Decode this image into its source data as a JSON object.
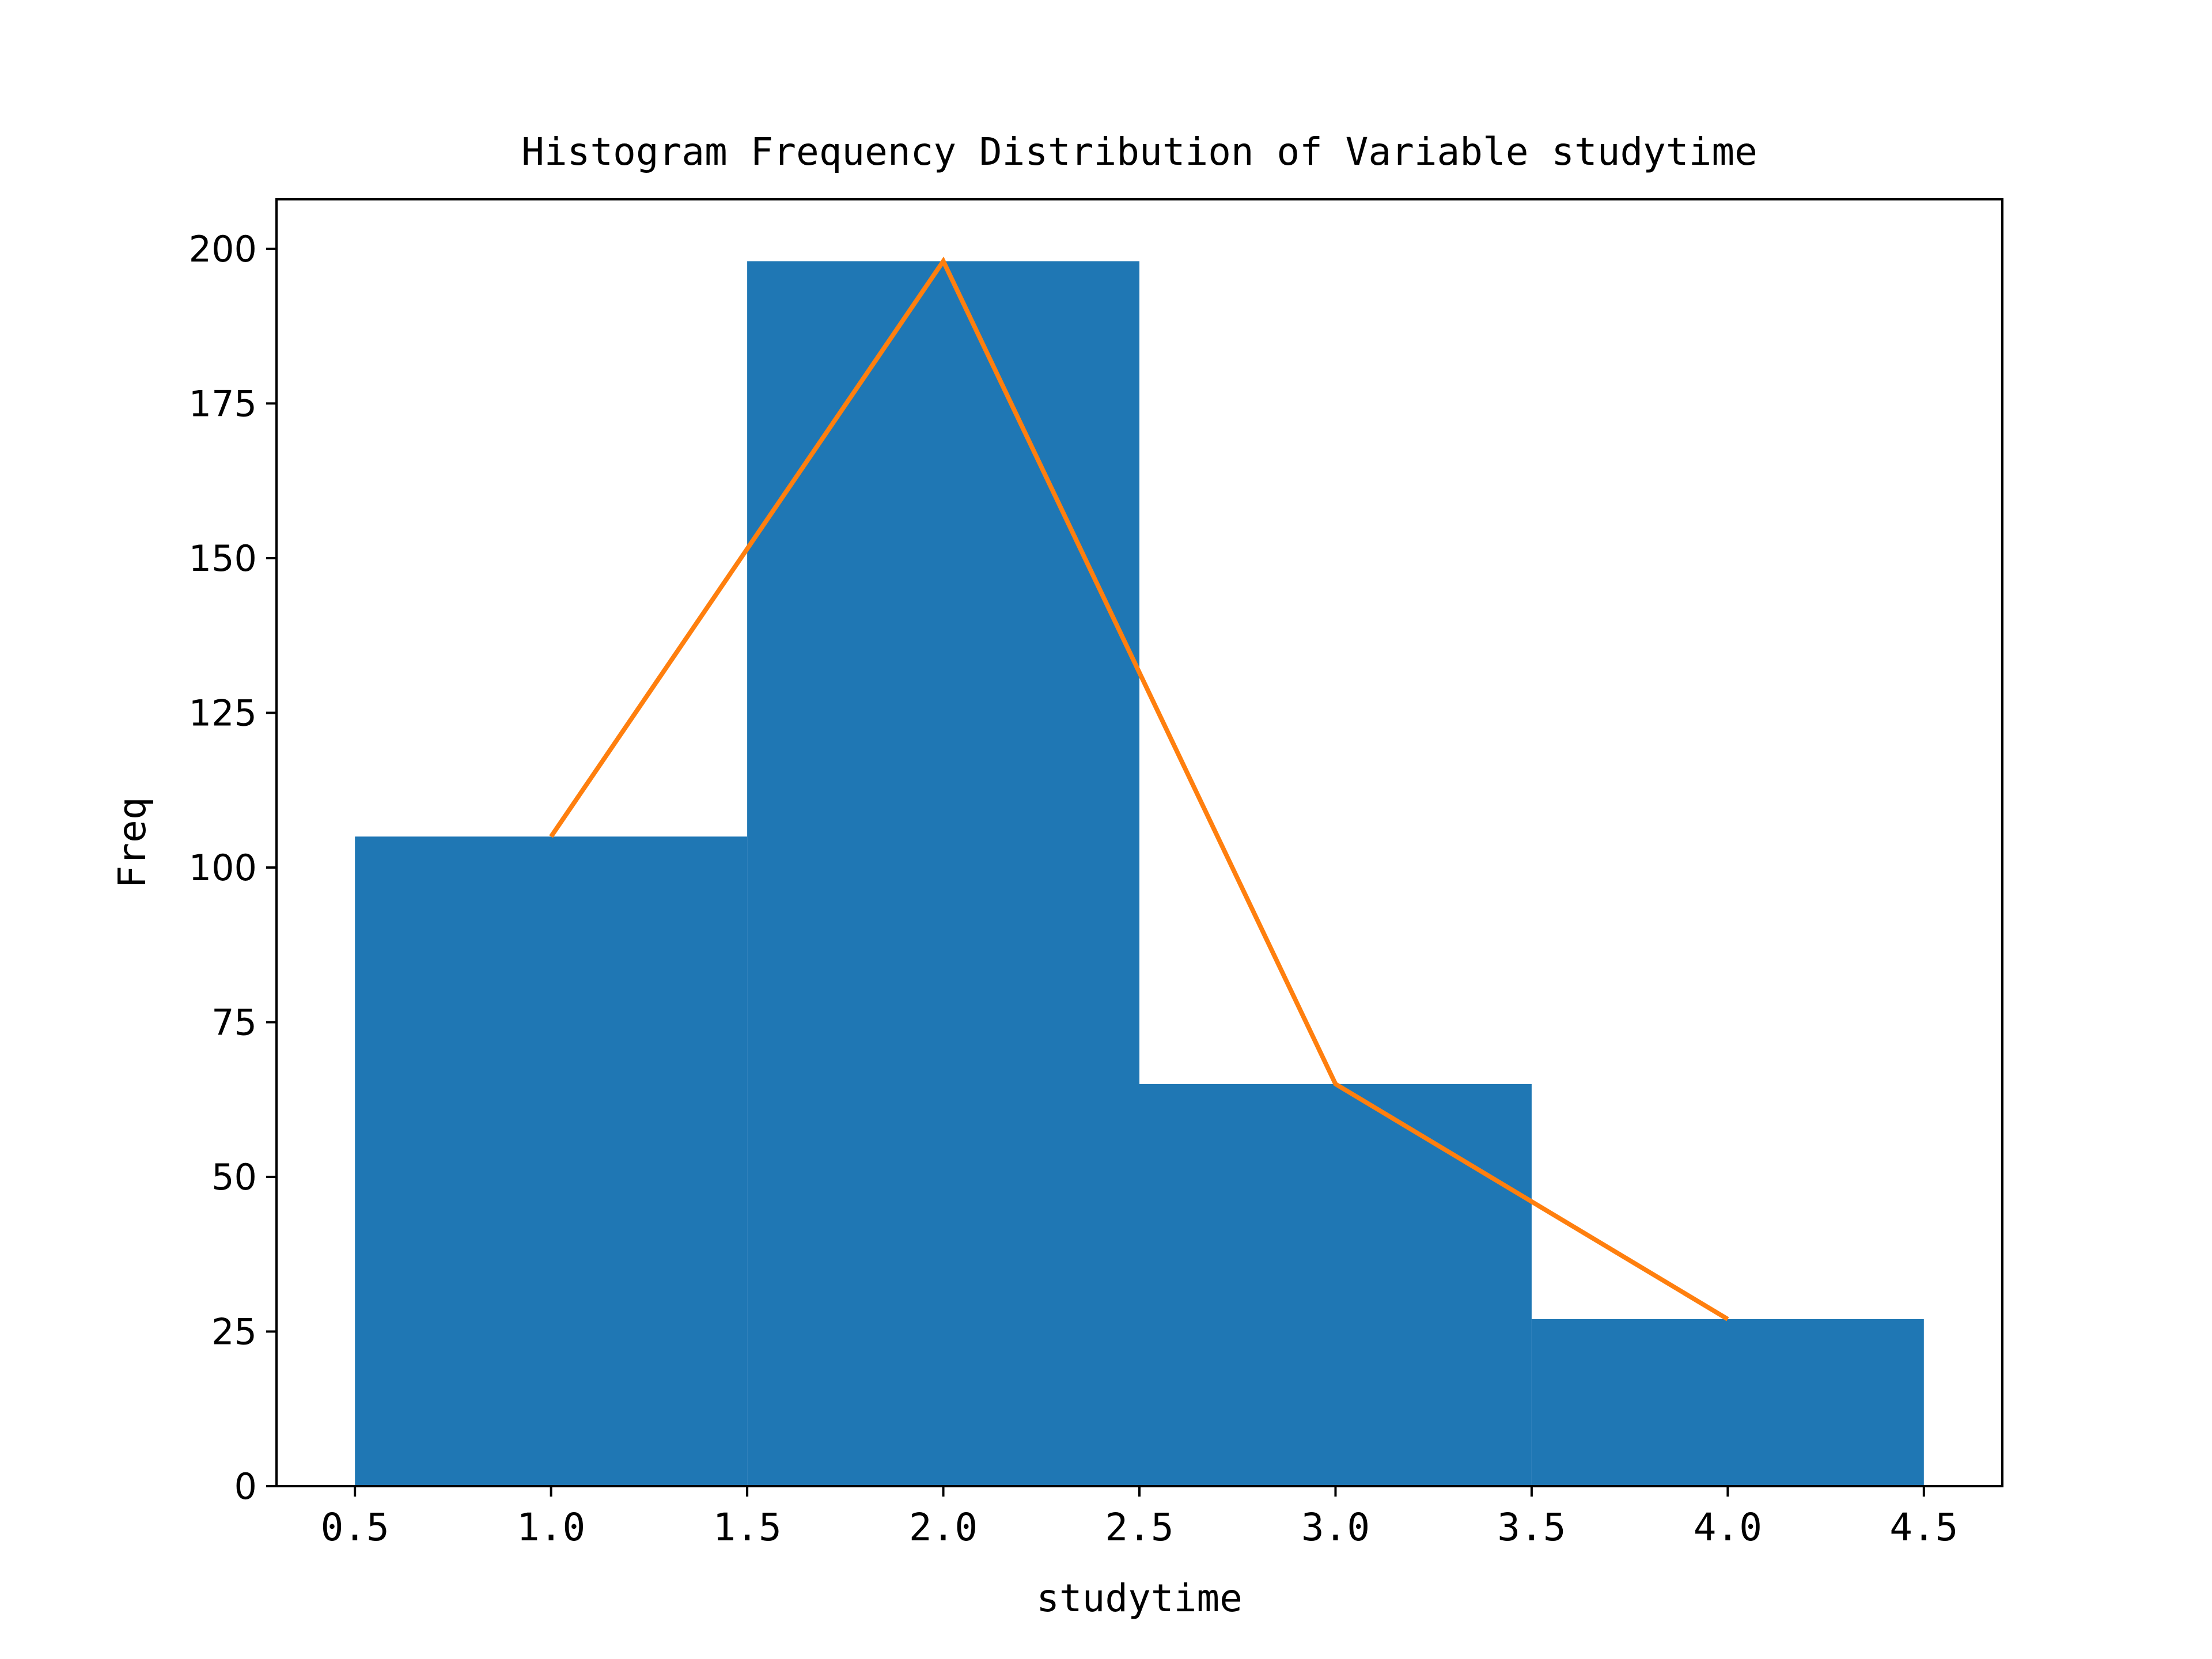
{
  "chart_data": {
    "type": "bar",
    "title": "Histogram Frequency Distribution of Variable studytime",
    "xlabel": "studytime",
    "ylabel": "Freq",
    "bins": [
      {
        "start": 0.5,
        "end": 1.5,
        "value": 105
      },
      {
        "start": 1.5,
        "end": 2.5,
        "value": 198
      },
      {
        "start": 2.5,
        "end": 3.5,
        "value": 65
      },
      {
        "start": 3.5,
        "end": 4.5,
        "value": 27
      }
    ],
    "series": [
      {
        "type": "bar",
        "values": [
          105,
          198,
          65,
          27
        ],
        "color": "#1f77b4"
      },
      {
        "type": "line",
        "x": [
          1.0,
          2.0,
          3.0,
          4.0
        ],
        "values": [
          105,
          198,
          65,
          27
        ],
        "color": "#ff7f0e"
      }
    ],
    "xlim": [
      0.3,
      4.7
    ],
    "ylim": [
      0,
      208
    ],
    "xticks": [
      0.5,
      1.0,
      1.5,
      2.0,
      2.5,
      3.0,
      3.5,
      4.0,
      4.5
    ],
    "xtick_labels": [
      "0.5",
      "1.0",
      "1.5",
      "2.0",
      "2.5",
      "3.0",
      "3.5",
      "4.0",
      "4.5"
    ],
    "yticks": [
      0,
      25,
      50,
      75,
      100,
      125,
      150,
      175,
      200
    ],
    "ytick_labels": [
      "0",
      "25",
      "50",
      "75",
      "100",
      "125",
      "150",
      "175",
      "200"
    ],
    "grid": false,
    "legend": "none"
  }
}
